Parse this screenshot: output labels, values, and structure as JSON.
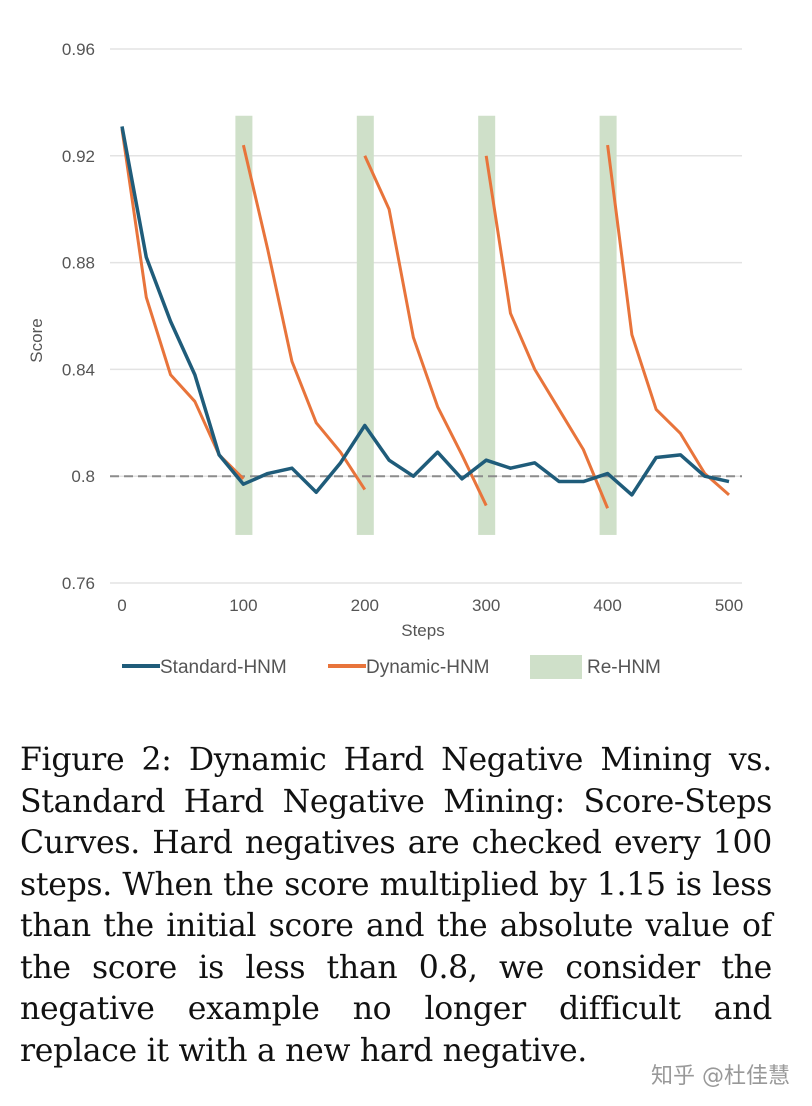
{
  "chart_data": {
    "type": "line",
    "xlabel": "Steps",
    "ylabel": "Score",
    "xlim": [
      0,
      500
    ],
    "ylim": [
      0.76,
      0.96
    ],
    "xticks": [
      "0",
      "100",
      "200",
      "300",
      "400",
      "500"
    ],
    "yticks": [
      "0.76",
      "0.8",
      "0.84",
      "0.88",
      "0.92",
      "0.96"
    ],
    "grid": true,
    "legend": "bottom",
    "reference_line": {
      "y": 0.8,
      "style": "dashed",
      "color": "#8c8c8c"
    },
    "series": [
      {
        "name": "Standard-HNM",
        "color": "#1f5c7a",
        "x": [
          0,
          20,
          40,
          60,
          80,
          100,
          120,
          140,
          160,
          180,
          200,
          220,
          240,
          260,
          280,
          300,
          320,
          340,
          360,
          380,
          400,
          420,
          440,
          460,
          480,
          500
        ],
        "values": [
          0.931,
          0.882,
          0.858,
          0.838,
          0.808,
          0.797,
          0.801,
          0.803,
          0.794,
          0.805,
          0.819,
          0.806,
          0.8,
          0.809,
          0.799,
          0.806,
          0.803,
          0.805,
          0.798,
          0.798,
          0.801,
          0.793,
          0.807,
          0.808,
          0.8,
          0.798
        ]
      },
      {
        "name": "Dynamic-HNM",
        "color": "#e8743b",
        "segments": [
          {
            "x": [
              0,
              20,
              40,
              60,
              80,
              100
            ],
            "values": [
              0.93,
              0.867,
              0.838,
              0.828,
              0.808,
              0.799
            ]
          },
          {
            "x": [
              100,
              120,
              140,
              160,
              180,
              200
            ],
            "values": [
              0.924,
              0.885,
              0.843,
              0.82,
              0.809,
              0.795
            ]
          },
          {
            "x": [
              200,
              220,
              240,
              260,
              280,
              300
            ],
            "values": [
              0.92,
              0.9,
              0.852,
              0.826,
              0.808,
              0.789
            ]
          },
          {
            "x": [
              300,
              320,
              340,
              360,
              380,
              400
            ],
            "values": [
              0.92,
              0.861,
              0.84,
              0.825,
              0.81,
              0.788
            ]
          },
          {
            "x": [
              400,
              420,
              440,
              460,
              480,
              500
            ],
            "values": [
              0.924,
              0.853,
              0.825,
              0.816,
              0.801,
              0.793
            ]
          }
        ]
      },
      {
        "name": "Re-HNM",
        "color": "#cfe0c9",
        "type": "band",
        "x": [
          100,
          200,
          300,
          400
        ],
        "range": [
          0.778,
          0.935
        ]
      }
    ]
  },
  "caption": "Figure 2: Dynamic Hard Negative Mining vs. Standard Hard Negative Mining: Score-Steps Curves.  Hard negatives are checked every 100 steps. When the score multiplied by 1.15 is less than the initial score and the absolute value of the score is less than 0.8, we consider the negative example no longer difficult and replace it with a new hard negative.",
  "watermark": "知乎 @杜佳慧"
}
